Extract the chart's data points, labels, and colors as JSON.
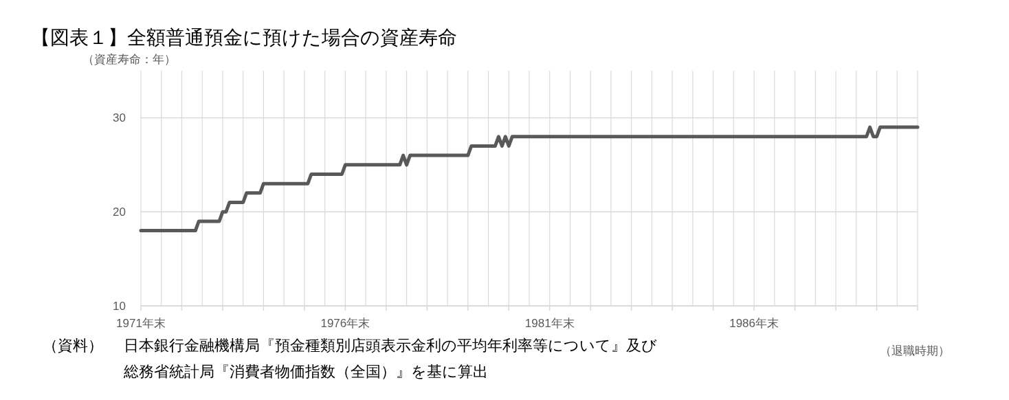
{
  "chart_data": {
    "type": "line",
    "title": "【図表１】全額普通預金に預けた場合の資産寿命",
    "ylabel": "（資産寿命：年）",
    "xlabel": "（退職時期）",
    "annotations": [
      "（資料）",
      "日本銀行金融機構局『預金種類別店頭表示金利の平均年利率等について』及び",
      "総務省統計局『消費者物価指数（全国）』を基に算出"
    ],
    "x": [
      "1971-12",
      "1973-04",
      "1973-05",
      "1973-11",
      "1973-12",
      "1974-01",
      "1974-02",
      "1974-06",
      "1974-07",
      "1974-11",
      "1974-12",
      "1976-01",
      "1976-02",
      "1976-11",
      "1976-12",
      "1978-04",
      "1978-05",
      "1978-06",
      "1978-07",
      "1979-12",
      "1980-01",
      "1980-08",
      "1980-09",
      "1980-10",
      "1980-11",
      "1980-12",
      "1981-01",
      "1989-09",
      "1989-10",
      "1989-11",
      "1989-12",
      "1990-01",
      "1990-12"
    ],
    "series": [
      {
        "color": "#595959",
        "values": [
          18,
          18,
          19,
          19,
          20,
          20,
          21,
          21,
          22,
          22,
          23,
          23,
          24,
          24,
          25,
          25,
          26,
          25,
          26,
          26,
          27,
          27,
          28,
          27,
          28,
          27,
          28,
          28,
          29,
          28,
          28,
          29,
          29
        ]
      }
    ],
    "xlim": [
      "1971-12",
      "1990-12"
    ],
    "xticks": [
      {
        "value": "1971-12",
        "label": "1971年末"
      },
      {
        "value": "1972-12",
        "label": null
      },
      {
        "value": "1973-12",
        "label": null
      },
      {
        "value": "1974-12",
        "label": null
      },
      {
        "value": "1975-12",
        "label": null
      },
      {
        "value": "1976-12",
        "label": "1976年末"
      },
      {
        "value": "1977-12",
        "label": null
      },
      {
        "value": "1978-12",
        "label": null
      },
      {
        "value": "1979-12",
        "label": null
      },
      {
        "value": "1980-12",
        "label": null
      },
      {
        "value": "1981-12",
        "label": "1981年末"
      },
      {
        "value": "1982-12",
        "label": null
      },
      {
        "value": "1983-12",
        "label": null
      },
      {
        "value": "1984-12",
        "label": null
      },
      {
        "value": "1985-12",
        "label": null
      },
      {
        "value": "1986-12",
        "label": "1986年末"
      },
      {
        "value": "1987-12",
        "label": null
      },
      {
        "value": "1988-12",
        "label": null
      },
      {
        "value": "1989-12",
        "label": null
      },
      {
        "value": "1990-12",
        "label": null
      }
    ],
    "ylim": [
      10,
      35
    ],
    "yticks": [
      10,
      20,
      30
    ],
    "grid": true,
    "marker": "none",
    "line_style": "solid"
  }
}
